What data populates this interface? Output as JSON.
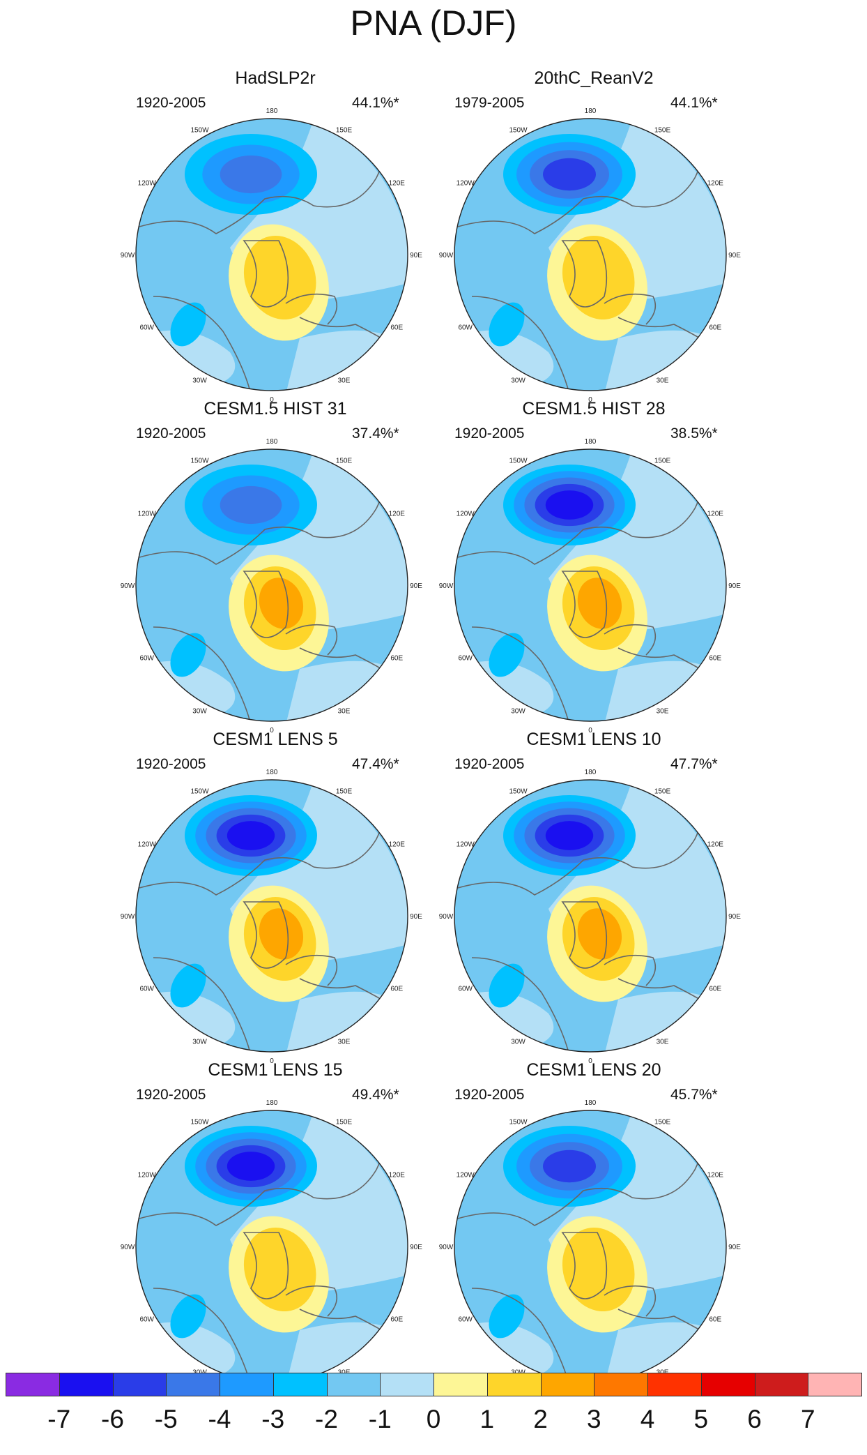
{
  "figure": {
    "title": "PNA (DJF)",
    "lon_labels": [
      "180",
      "150E",
      "120E",
      "90E",
      "60E",
      "30E",
      "0",
      "30W",
      "60W",
      "90W",
      "120W",
      "150W"
    ]
  },
  "panels": [
    {
      "title": "HadSLP2r",
      "period": "1920-2005",
      "variance": "44.1%*",
      "neg_core": -4,
      "pos_core": 2
    },
    {
      "title": "20thC_ReanV2",
      "period": "1979-2005",
      "variance": "44.1%*",
      "neg_core": -5,
      "pos_core": 2
    },
    {
      "title": "CESM1.5 HIST 31",
      "period": "1920-2005",
      "variance": "37.4%*",
      "neg_core": -4,
      "pos_core": 3
    },
    {
      "title": "CESM1.5 HIST 28",
      "period": "1920-2005",
      "variance": "38.5%*",
      "neg_core": -6,
      "pos_core": 3
    },
    {
      "title": "CESM1 LENS 5",
      "period": "1920-2005",
      "variance": "47.4%*",
      "neg_core": -6,
      "pos_core": 3
    },
    {
      "title": "CESM1 LENS 10",
      "period": "1920-2005",
      "variance": "47.7%*",
      "neg_core": -6,
      "pos_core": 3
    },
    {
      "title": "CESM1 LENS 15",
      "period": "1920-2005",
      "variance": "49.4%*",
      "neg_core": -6,
      "pos_core": 2
    },
    {
      "title": "CESM1 LENS 20",
      "period": "1920-2005",
      "variance": "45.7%*",
      "neg_core": -5,
      "pos_core": 2
    }
  ],
  "colorbar": {
    "labels": [
      "-7",
      "-6",
      "-5",
      "-4",
      "-3",
      "-2",
      "-1",
      "0",
      "1",
      "2",
      "3",
      "4",
      "5",
      "6",
      "7"
    ],
    "colors": [
      "#8a2be2",
      "#1a10f0",
      "#2a3de8",
      "#3a78e8",
      "#1e9aff",
      "#00c1ff",
      "#73c8f2",
      "#b4e0f6",
      "#fdf696",
      "#fed52a",
      "#fea600",
      "#fe7800",
      "#ff3200",
      "#e60000",
      "#ce1c1c",
      "#ffb4b4"
    ]
  },
  "colors": {
    "ocean_bg": "#b4e0f6",
    "coast": "#666666"
  }
}
